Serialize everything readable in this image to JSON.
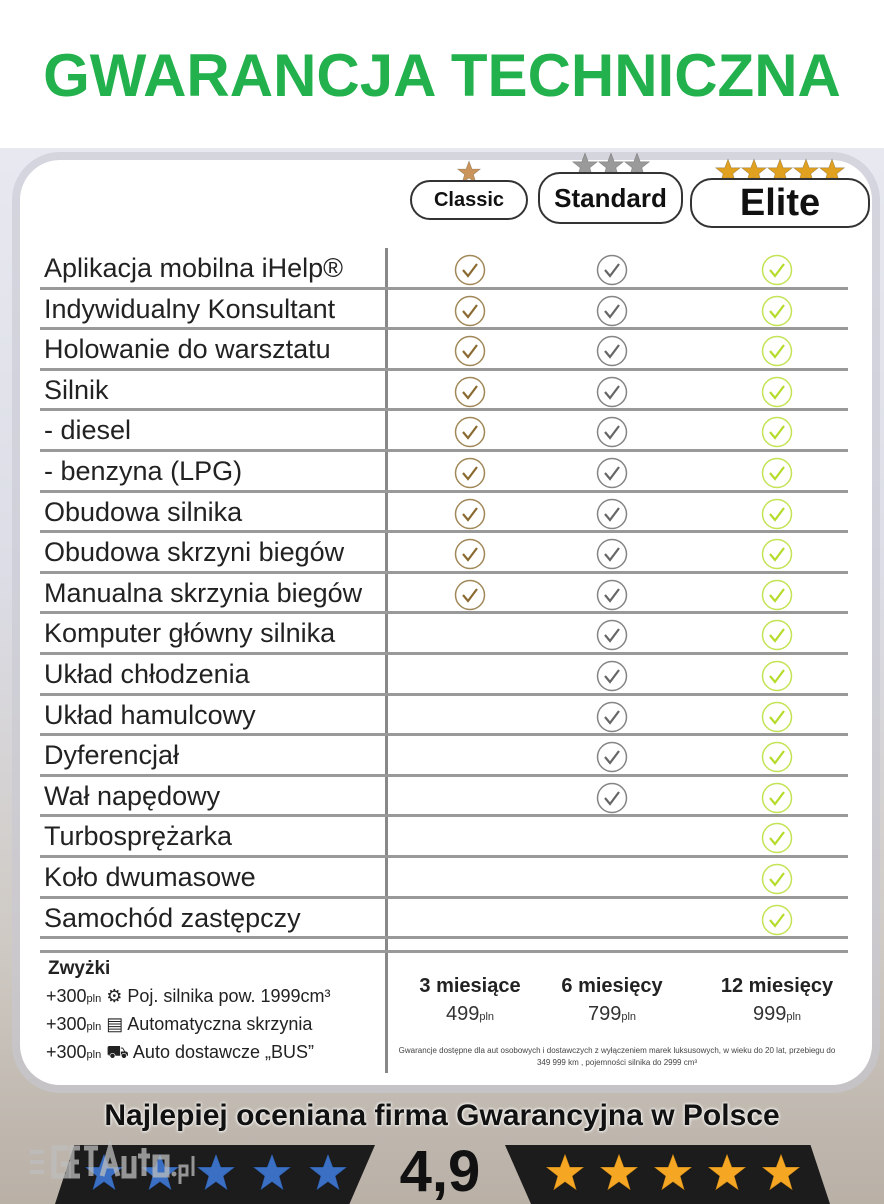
{
  "title": "GWARANCJA TECHNICZNA",
  "plans": [
    {
      "name": "Classic",
      "stars": 1,
      "star_color": "#c9955a"
    },
    {
      "name": "Standard",
      "stars": 3,
      "star_color": "#9a9a9a"
    },
    {
      "name": "Elite",
      "stars": 5,
      "star_color": "#e0a020"
    }
  ],
  "check_colors": {
    "classic": "#8a6a30",
    "standard": "#666666",
    "elite": "#b5dc2a"
  },
  "rows": [
    {
      "label": "Aplikacja mobilna iHelp®",
      "classic": true,
      "standard": true,
      "elite": true
    },
    {
      "label": "Indywidualny Konsultant",
      "classic": true,
      "standard": true,
      "elite": true
    },
    {
      "label": "Holowanie do warsztatu",
      "classic": true,
      "standard": true,
      "elite": true
    },
    {
      "label": "Silnik",
      "classic": true,
      "standard": true,
      "elite": true
    },
    {
      "label": "- diesel",
      "classic": true,
      "standard": true,
      "elite": true
    },
    {
      "label": "- benzyna (LPG)",
      "classic": true,
      "standard": true,
      "elite": true
    },
    {
      "label": "Obudowa silnika",
      "classic": true,
      "standard": true,
      "elite": true
    },
    {
      "label": "Obudowa skrzyni biegów",
      "classic": true,
      "standard": true,
      "elite": true
    },
    {
      "label": "Manualna skrzynia biegów",
      "classic": true,
      "standard": true,
      "elite": true
    },
    {
      "label": "Komputer główny silnika",
      "classic": false,
      "standard": true,
      "elite": true
    },
    {
      "label": "Układ chłodzenia",
      "classic": false,
      "standard": true,
      "elite": true
    },
    {
      "label": "Układ hamulcowy",
      "classic": false,
      "standard": true,
      "elite": true
    },
    {
      "label": "Dyferencjał",
      "classic": false,
      "standard": true,
      "elite": true
    },
    {
      "label": "Wał napędowy",
      "classic": false,
      "standard": true,
      "elite": true
    },
    {
      "label": "Turbosprężarka",
      "classic": false,
      "standard": false,
      "elite": true
    },
    {
      "label": "Koło dwumasowe",
      "classic": false,
      "standard": false,
      "elite": true
    },
    {
      "label": "Samochód zastępczy",
      "classic": false,
      "standard": false,
      "elite": true
    }
  ],
  "surcharges": {
    "title": "Zwyżki",
    "items": [
      {
        "price": "+300",
        "unit": "pln",
        "icon": "engine-icon",
        "label": "Poj. silnika pow. 1999cm³"
      },
      {
        "price": "+300",
        "unit": "pln",
        "icon": "gearbox-icon",
        "label": "Automatyczna skrzynia"
      },
      {
        "price": "+300",
        "unit": "pln",
        "icon": "van-icon",
        "label": "Auto dostawcze „BUS”"
      }
    ]
  },
  "pricing": [
    {
      "duration": "3 miesiące",
      "price": "499",
      "unit": "pln"
    },
    {
      "duration": "6 miesięcy",
      "price": "799",
      "unit": "pln"
    },
    {
      "duration": "12 miesięcy",
      "price": "999",
      "unit": "pln"
    }
  ],
  "note": "Gwarancje dostępne dla aut osobowych i dostawczych z wyłączeniem marek luksusowych, w wieku do 20 lat, przebiegu do 349 999 km , pojemności silnika do 2999 cm³",
  "slogan": "Najlepiej oceniana firma Gwarancyjna w Polsce",
  "rating": "4,9",
  "rating_stars": {
    "left_color": "#3a6fc4",
    "right_color": "#f5a623",
    "count": 5
  },
  "watermark": "GetAuto.pl"
}
